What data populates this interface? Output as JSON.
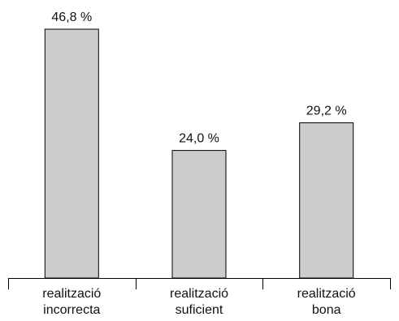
{
  "chart_data": {
    "type": "bar",
    "categories": [
      [
        "realització",
        "incorrecta"
      ],
      [
        "realització",
        "suficient"
      ],
      [
        "realització",
        "bona"
      ]
    ],
    "values": [
      46.8,
      24.0,
      29.2
    ],
    "data_labels": [
      "46,8 %",
      "24,0 %",
      "29,2 %"
    ],
    "title": "",
    "xlabel": "",
    "ylabel": "",
    "ylim": [
      0,
      46.8
    ],
    "grid": false,
    "legend": "none",
    "bar_color": "#cccccc",
    "edge_color": "#000000"
  }
}
